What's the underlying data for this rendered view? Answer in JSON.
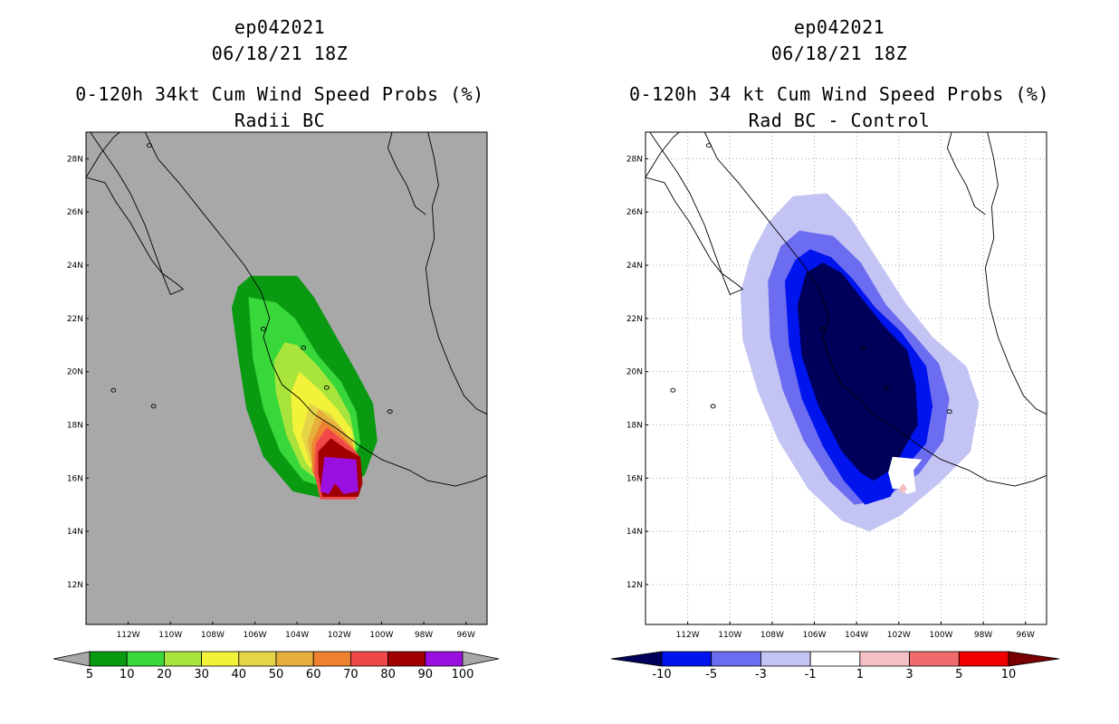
{
  "chart_data": [
    {
      "type": "filled-contour-map",
      "title_lines": [
        "ep042021",
        "06/18/21 18Z",
        "0-120h 34kt Cum Wind Speed Probs (%)",
        "Radii BC"
      ],
      "xlim": [
        -114,
        -95
      ],
      "ylim": [
        10.5,
        29
      ],
      "x_ticks": [
        "112W",
        "110W",
        "108W",
        "106W",
        "104W",
        "102W",
        "100W",
        "98W",
        "96W"
      ],
      "y_ticks": [
        "12N",
        "14N",
        "16N",
        "18N",
        "20N",
        "22N",
        "24N",
        "26N",
        "28N"
      ],
      "grid": false,
      "background": "#a8a8a8",
      "colorbar": {
        "labels": [
          "5",
          "10",
          "20",
          "30",
          "40",
          "50",
          "60",
          "70",
          "80",
          "90",
          "100"
        ],
        "colors": [
          "#a8a8a8",
          "#0a9a12",
          "#38d83a",
          "#a8e43c",
          "#f2f23a",
          "#e6d448",
          "#e6ae3c",
          "#ee8230",
          "#f04848",
          "#a00000",
          "#9a10e0",
          "#a8a8a8"
        ]
      },
      "contours": [
        {
          "level": 5,
          "color": "#0a9a12",
          "lonlat": [
            [
              -106.8,
              23.2
            ],
            [
              -106.2,
              23.6
            ],
            [
              -104,
              23.6
            ],
            [
              -103.2,
              22.8
            ],
            [
              -102.2,
              21.4
            ],
            [
              -101.2,
              20
            ],
            [
              -100.4,
              18.8
            ],
            [
              -100.2,
              17.4
            ],
            [
              -100.8,
              16.1
            ],
            [
              -102.5,
              15.2
            ],
            [
              -104.2,
              15.5
            ],
            [
              -105.6,
              16.8
            ],
            [
              -106.4,
              18.6
            ],
            [
              -106.8,
              20.6
            ],
            [
              -107.1,
              22.4
            ]
          ]
        },
        {
          "level": 10,
          "color": "#38d83a",
          "lonlat": [
            [
              -106.3,
              22.8
            ],
            [
              -105,
              22.6
            ],
            [
              -104.1,
              22
            ],
            [
              -103,
              20.6
            ],
            [
              -101.9,
              19.6
            ],
            [
              -101.2,
              18.5
            ],
            [
              -101,
              17.3
            ],
            [
              -101.6,
              16.2
            ],
            [
              -102.5,
              15.6
            ],
            [
              -103.7,
              15.9
            ],
            [
              -104.8,
              17
            ],
            [
              -105.6,
              18.6
            ],
            [
              -106.1,
              20.5
            ]
          ]
        },
        {
          "level": 20,
          "color": "#a8e43c",
          "lonlat": [
            [
              -104.6,
              21.1
            ],
            [
              -104,
              21
            ],
            [
              -103,
              20.2
            ],
            [
              -102.2,
              19.4
            ],
            [
              -101.5,
              18.4
            ],
            [
              -101.2,
              17.2
            ],
            [
              -101.6,
              16.2
            ],
            [
              -102.8,
              15.8
            ],
            [
              -103.8,
              16.4
            ],
            [
              -104.5,
              17.6
            ],
            [
              -105,
              19.2
            ],
            [
              -105.1,
              20.4
            ]
          ]
        },
        {
          "level": 30,
          "color": "#f2f23a",
          "lonlat": [
            [
              -103.9,
              20
            ],
            [
              -102.9,
              19.3
            ],
            [
              -102.1,
              18.6
            ],
            [
              -101.4,
              17.8
            ],
            [
              -101.2,
              16.8
            ],
            [
              -101.8,
              16
            ],
            [
              -102.8,
              15.9
            ],
            [
              -103.6,
              16.6
            ],
            [
              -104.2,
              17.8
            ],
            [
              -104.3,
              19.2
            ]
          ]
        },
        {
          "level": 40,
          "color": "#e6d448",
          "lonlat": [
            [
              -103.4,
              18.8
            ],
            [
              -102.4,
              18.4
            ],
            [
              -101.6,
              17.6
            ],
            [
              -101.2,
              16.8
            ],
            [
              -101.6,
              16
            ],
            [
              -102.6,
              15.8
            ],
            [
              -103.4,
              16.6
            ],
            [
              -103.8,
              17.6
            ]
          ]
        },
        {
          "level": 50,
          "color": "#e6ae3c",
          "lonlat": [
            [
              -103,
              18.6
            ],
            [
              -102.2,
              18.1
            ],
            [
              -101.4,
              17.4
            ],
            [
              -101.1,
              16.6
            ],
            [
              -101.5,
              15.9
            ],
            [
              -102.6,
              15.6
            ],
            [
              -103.2,
              16.2
            ],
            [
              -103.5,
              17.4
            ]
          ]
        },
        {
          "level": 60,
          "color": "#ee8230",
          "lonlat": [
            [
              -102.8,
              18.2
            ],
            [
              -102,
              17.7
            ],
            [
              -101.3,
              17.1
            ],
            [
              -101,
              16.2
            ],
            [
              -101.5,
              15.4
            ],
            [
              -102.8,
              15.4
            ],
            [
              -103.3,
              16.3
            ],
            [
              -103.3,
              17.3
            ]
          ]
        },
        {
          "level": 70,
          "color": "#f04848",
          "lonlat": [
            [
              -102.6,
              17.9
            ],
            [
              -101.8,
              17.4
            ],
            [
              -101.1,
              16.9
            ],
            [
              -100.9,
              15.9
            ],
            [
              -101.2,
              15.2
            ],
            [
              -102.9,
              15.2
            ],
            [
              -103.2,
              16.2
            ],
            [
              -103.1,
              17.3
            ]
          ]
        },
        {
          "level": 80,
          "color": "#a00000",
          "lonlat": [
            [
              -102.4,
              17.5
            ],
            [
              -101.7,
              17.1
            ],
            [
              -101,
              16.8
            ],
            [
              -100.9,
              15.8
            ],
            [
              -101.1,
              15.3
            ],
            [
              -102.8,
              15.3
            ],
            [
              -103,
              16.2
            ],
            [
              -103,
              17
            ]
          ]
        },
        {
          "level": 90,
          "color": "#9a10e0",
          "lonlat": [
            [
              -102.7,
              16.8
            ],
            [
              -101.2,
              16.7
            ],
            [
              -101.1,
              15.5
            ],
            [
              -101.8,
              15.4
            ],
            [
              -102.2,
              15.8
            ],
            [
              -102.5,
              15.4
            ],
            [
              -102.9,
              15.5
            ]
          ]
        }
      ]
    },
    {
      "type": "filled-contour-map",
      "title_lines": [
        "ep042021",
        "06/18/21 18Z",
        "0-120h 34 kt Cum Wind Speed Probs (%)",
        "Rad BC - Control"
      ],
      "xlim": [
        -114,
        -95
      ],
      "ylim": [
        10.5,
        29
      ],
      "x_ticks": [
        "112W",
        "110W",
        "108W",
        "106W",
        "104W",
        "102W",
        "100W",
        "98W",
        "96W"
      ],
      "y_ticks": [
        "12N",
        "14N",
        "16N",
        "18N",
        "20N",
        "22N",
        "24N",
        "26N",
        "28N"
      ],
      "grid": true,
      "background": "#ffffff",
      "colorbar": {
        "labels": [
          "-10",
          "-5",
          "-3",
          "-1",
          "1",
          "3",
          "5",
          "10"
        ],
        "colors": [
          "#00005a",
          "#0014ee",
          "#6c6cf0",
          "#c4c4f4",
          "#ffffff",
          "#f4c0c4",
          "#f06c6c",
          "#f00000",
          "#780000"
        ]
      },
      "contours": [
        {
          "level": -1,
          "color": "#c4c4f4",
          "lonlat": [
            [
              -109,
              24.4
            ],
            [
              -108.2,
              25.6
            ],
            [
              -107,
              26.6
            ],
            [
              -105.4,
              26.7
            ],
            [
              -104.3,
              25.8
            ],
            [
              -103,
              24.2
            ],
            [
              -101.7,
              22.6
            ],
            [
              -100.4,
              21.3
            ],
            [
              -98.8,
              20.2
            ],
            [
              -98.2,
              18.8
            ],
            [
              -98.6,
              17
            ],
            [
              -100.1,
              15.8
            ],
            [
              -101.9,
              14.6
            ],
            [
              -103.4,
              14
            ],
            [
              -104.7,
              14.4
            ],
            [
              -106.3,
              15.6
            ],
            [
              -107.7,
              17.4
            ],
            [
              -108.7,
              19.3
            ],
            [
              -109.4,
              21.2
            ],
            [
              -109.5,
              23
            ]
          ]
        },
        {
          "level": -3,
          "color": "#6c6cf0",
          "lonlat": [
            [
              -108.2,
              23.4
            ],
            [
              -107.6,
              24.7
            ],
            [
              -106.7,
              25.3
            ],
            [
              -105.1,
              25.1
            ],
            [
              -103.8,
              24.1
            ],
            [
              -102.6,
              22.5
            ],
            [
              -101.2,
              21.3
            ],
            [
              -100.1,
              20.3
            ],
            [
              -99.6,
              19
            ],
            [
              -99.9,
              17.4
            ],
            [
              -101,
              16.2
            ],
            [
              -102.7,
              15.2
            ],
            [
              -104.1,
              15
            ],
            [
              -105.3,
              15.9
            ],
            [
              -106.5,
              17.4
            ],
            [
              -107.5,
              19.3
            ],
            [
              -108.1,
              21.3
            ]
          ]
        },
        {
          "level": -5,
          "color": "#0014ee",
          "lonlat": [
            [
              -107.4,
              23.4
            ],
            [
              -106.9,
              24.2
            ],
            [
              -106.2,
              24.6
            ],
            [
              -105.2,
              24.3
            ],
            [
              -104.2,
              23.5
            ],
            [
              -103.1,
              22.4
            ],
            [
              -101.9,
              21.5
            ],
            [
              -100.7,
              20.2
            ],
            [
              -100.4,
              18.7
            ],
            [
              -100.7,
              17.3
            ],
            [
              -101.6,
              16.5
            ],
            [
              -102.4,
              15.3
            ],
            [
              -103.6,
              15
            ],
            [
              -104.6,
              15.9
            ],
            [
              -105.6,
              17.2
            ],
            [
              -106.6,
              19
            ],
            [
              -107.2,
              21
            ]
          ]
        },
        {
          "level": -10,
          "color": "#00005a",
          "lonlat": [
            [
              -106.8,
              22.5
            ],
            [
              -106.4,
              23.7
            ],
            [
              -105.6,
              24.1
            ],
            [
              -104.7,
              23.7
            ],
            [
              -103.8,
              22.8
            ],
            [
              -102.8,
              21.8
            ],
            [
              -101.6,
              20.8
            ],
            [
              -101.2,
              19.5
            ],
            [
              -101.1,
              18
            ],
            [
              -101.7,
              17.2
            ],
            [
              -102.2,
              16.4
            ],
            [
              -103.2,
              15.9
            ],
            [
              -103.8,
              16.2
            ],
            [
              -104.7,
              17
            ],
            [
              -105.8,
              18.7
            ],
            [
              -106.6,
              20.6
            ]
          ]
        },
        {
          "level": 1,
          "color": "#ffffff",
          "lonlat": [
            [
              -102.3,
              16.8
            ],
            [
              -100.9,
              16.7
            ],
            [
              -101.3,
              16.3
            ],
            [
              -101.2,
              15.5
            ],
            [
              -101.6,
              15.4
            ],
            [
              -102,
              15.6
            ],
            [
              -102.3,
              15.6
            ],
            [
              -102.5,
              16.2
            ]
          ]
        },
        {
          "level": 3,
          "color": "#f4c0c4",
          "lonlat": [
            [
              -101.6,
              15.6
            ],
            [
              -101.8,
              15.4
            ],
            [
              -102,
              15.6
            ],
            [
              -101.8,
              15.8
            ]
          ]
        }
      ]
    }
  ]
}
